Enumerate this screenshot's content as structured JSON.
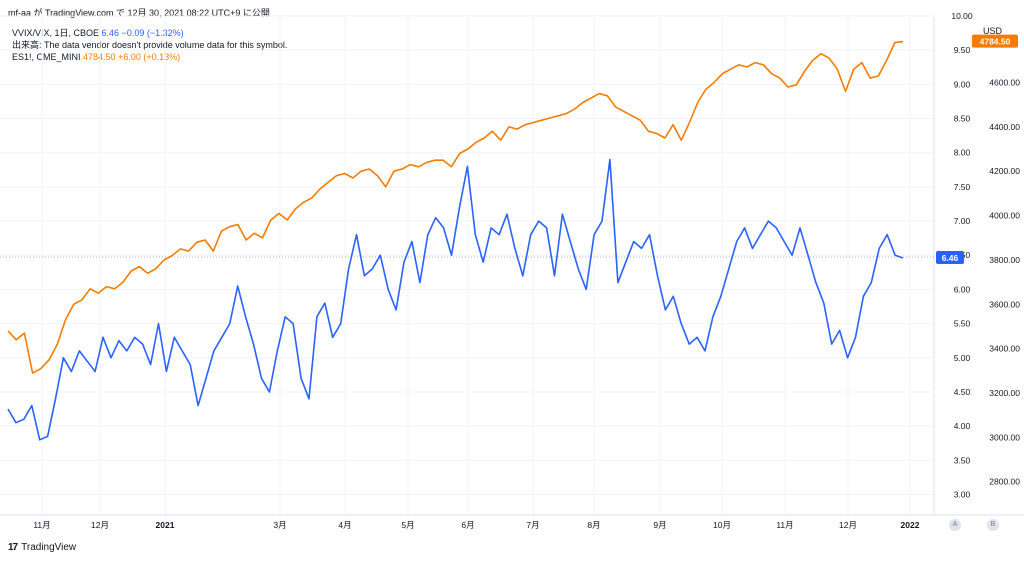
{
  "header": {
    "text": "mf-aa が TradingView.com で 12月 30, 2021 08:22 UTC+9 に公開"
  },
  "legend": {
    "series1_symbol": "VVIX/VIX, 1日, CBOE",
    "series1_value": "6.46",
    "series1_change": "−0.09 (−1.32%)",
    "volume_note": "出来高: The data vendor doesn't provide volume data for this symbol.",
    "series2_symbol": "ES1!, CME_MINI",
    "series2_value": "4784.50",
    "series2_change": "+6.00 (+0.13%)"
  },
  "currency": "USD",
  "footer": {
    "brand": "TradingView",
    "logo": "17"
  },
  "axis_buttons": {
    "a": "A",
    "b": "B"
  },
  "colors": {
    "ratio": "#2962ff",
    "futures": "#f57c00",
    "grid": "#f0f3fa",
    "text": "#131722"
  },
  "chart_data": {
    "type": "line",
    "x_labels": [
      "11月",
      "12月",
      "2021",
      "3月",
      "4月",
      "5月",
      "6月",
      "7月",
      "8月",
      "9月",
      "10月",
      "11月",
      "12月",
      "2022"
    ],
    "left_axis": {
      "ticks": [
        "10.00",
        "9.50",
        "9.00",
        "8.50",
        "8.00",
        "7.50",
        "7.00",
        "6.50",
        "6.00",
        "5.50",
        "5.00",
        "4.50",
        "4.00",
        "3.50",
        "3.00"
      ],
      "range": [
        2.7,
        10.0
      ]
    },
    "right_axis": {
      "ticks": [
        "4600.00",
        "4400.00",
        "4200.00",
        "4000.00",
        "3800.00",
        "3600.00",
        "3400.00",
        "3200.00",
        "3000.00",
        "2800.00"
      ],
      "range": [
        2650,
        4900
      ]
    },
    "grid": true,
    "last_labels": {
      "ratio": "6.46",
      "futures": "4784.50"
    },
    "series": [
      {
        "name": "VVIX/VIX",
        "axis": "left",
        "values": [
          4.25,
          4.05,
          4.1,
          4.3,
          3.8,
          3.85,
          4.4,
          5.0,
          4.8,
          5.1,
          4.95,
          4.8,
          5.3,
          5.0,
          5.25,
          5.1,
          5.3,
          5.2,
          4.9,
          5.5,
          4.8,
          5.3,
          5.1,
          4.9,
          4.3,
          4.7,
          5.1,
          5.3,
          5.5,
          6.05,
          5.6,
          5.2,
          4.7,
          4.5,
          5.1,
          5.6,
          5.5,
          4.7,
          4.4,
          5.6,
          5.8,
          5.3,
          5.5,
          6.3,
          6.8,
          6.2,
          6.3,
          6.5,
          6.0,
          5.7,
          6.4,
          6.7,
          6.1,
          6.8,
          7.05,
          6.9,
          6.5,
          7.2,
          7.8,
          6.8,
          6.4,
          6.9,
          6.8,
          7.1,
          6.6,
          6.2,
          6.8,
          7.0,
          6.9,
          6.2,
          7.1,
          6.7,
          6.3,
          6.0,
          6.8,
          7.0,
          7.9,
          6.1,
          6.4,
          6.7,
          6.6,
          6.8,
          6.2,
          5.7,
          5.9,
          5.5,
          5.2,
          5.3,
          5.1,
          5.6,
          5.9,
          6.3,
          6.7,
          6.9,
          6.6,
          6.8,
          7.0,
          6.9,
          6.7,
          6.5,
          6.9,
          6.5,
          6.1,
          5.8,
          5.2,
          5.4,
          5.0,
          5.3,
          5.9,
          6.1,
          6.6,
          6.8,
          6.5,
          6.46
        ]
      },
      {
        "name": "ES1!",
        "axis": "right",
        "values": [
          3480,
          3440,
          3470,
          3290,
          3310,
          3350,
          3420,
          3530,
          3600,
          3620,
          3670,
          3650,
          3680,
          3670,
          3700,
          3750,
          3770,
          3740,
          3760,
          3800,
          3820,
          3850,
          3840,
          3880,
          3890,
          3840,
          3930,
          3950,
          3960,
          3890,
          3920,
          3900,
          3980,
          4010,
          3980,
          4030,
          4060,
          4080,
          4120,
          4150,
          4180,
          4190,
          4170,
          4200,
          4210,
          4180,
          4130,
          4200,
          4210,
          4230,
          4220,
          4240,
          4250,
          4250,
          4220,
          4280,
          4300,
          4330,
          4350,
          4380,
          4340,
          4400,
          4390,
          4410,
          4420,
          4430,
          4440,
          4450,
          4460,
          4480,
          4510,
          4530,
          4550,
          4540,
          4490,
          4470,
          4450,
          4430,
          4380,
          4370,
          4350,
          4410,
          4340,
          4420,
          4510,
          4570,
          4600,
          4640,
          4660,
          4680,
          4670,
          4690,
          4680,
          4640,
          4620,
          4580,
          4590,
          4650,
          4700,
          4730,
          4710,
          4660,
          4560,
          4660,
          4690,
          4620,
          4630,
          4700,
          4780,
          4784.5
        ]
      }
    ]
  }
}
